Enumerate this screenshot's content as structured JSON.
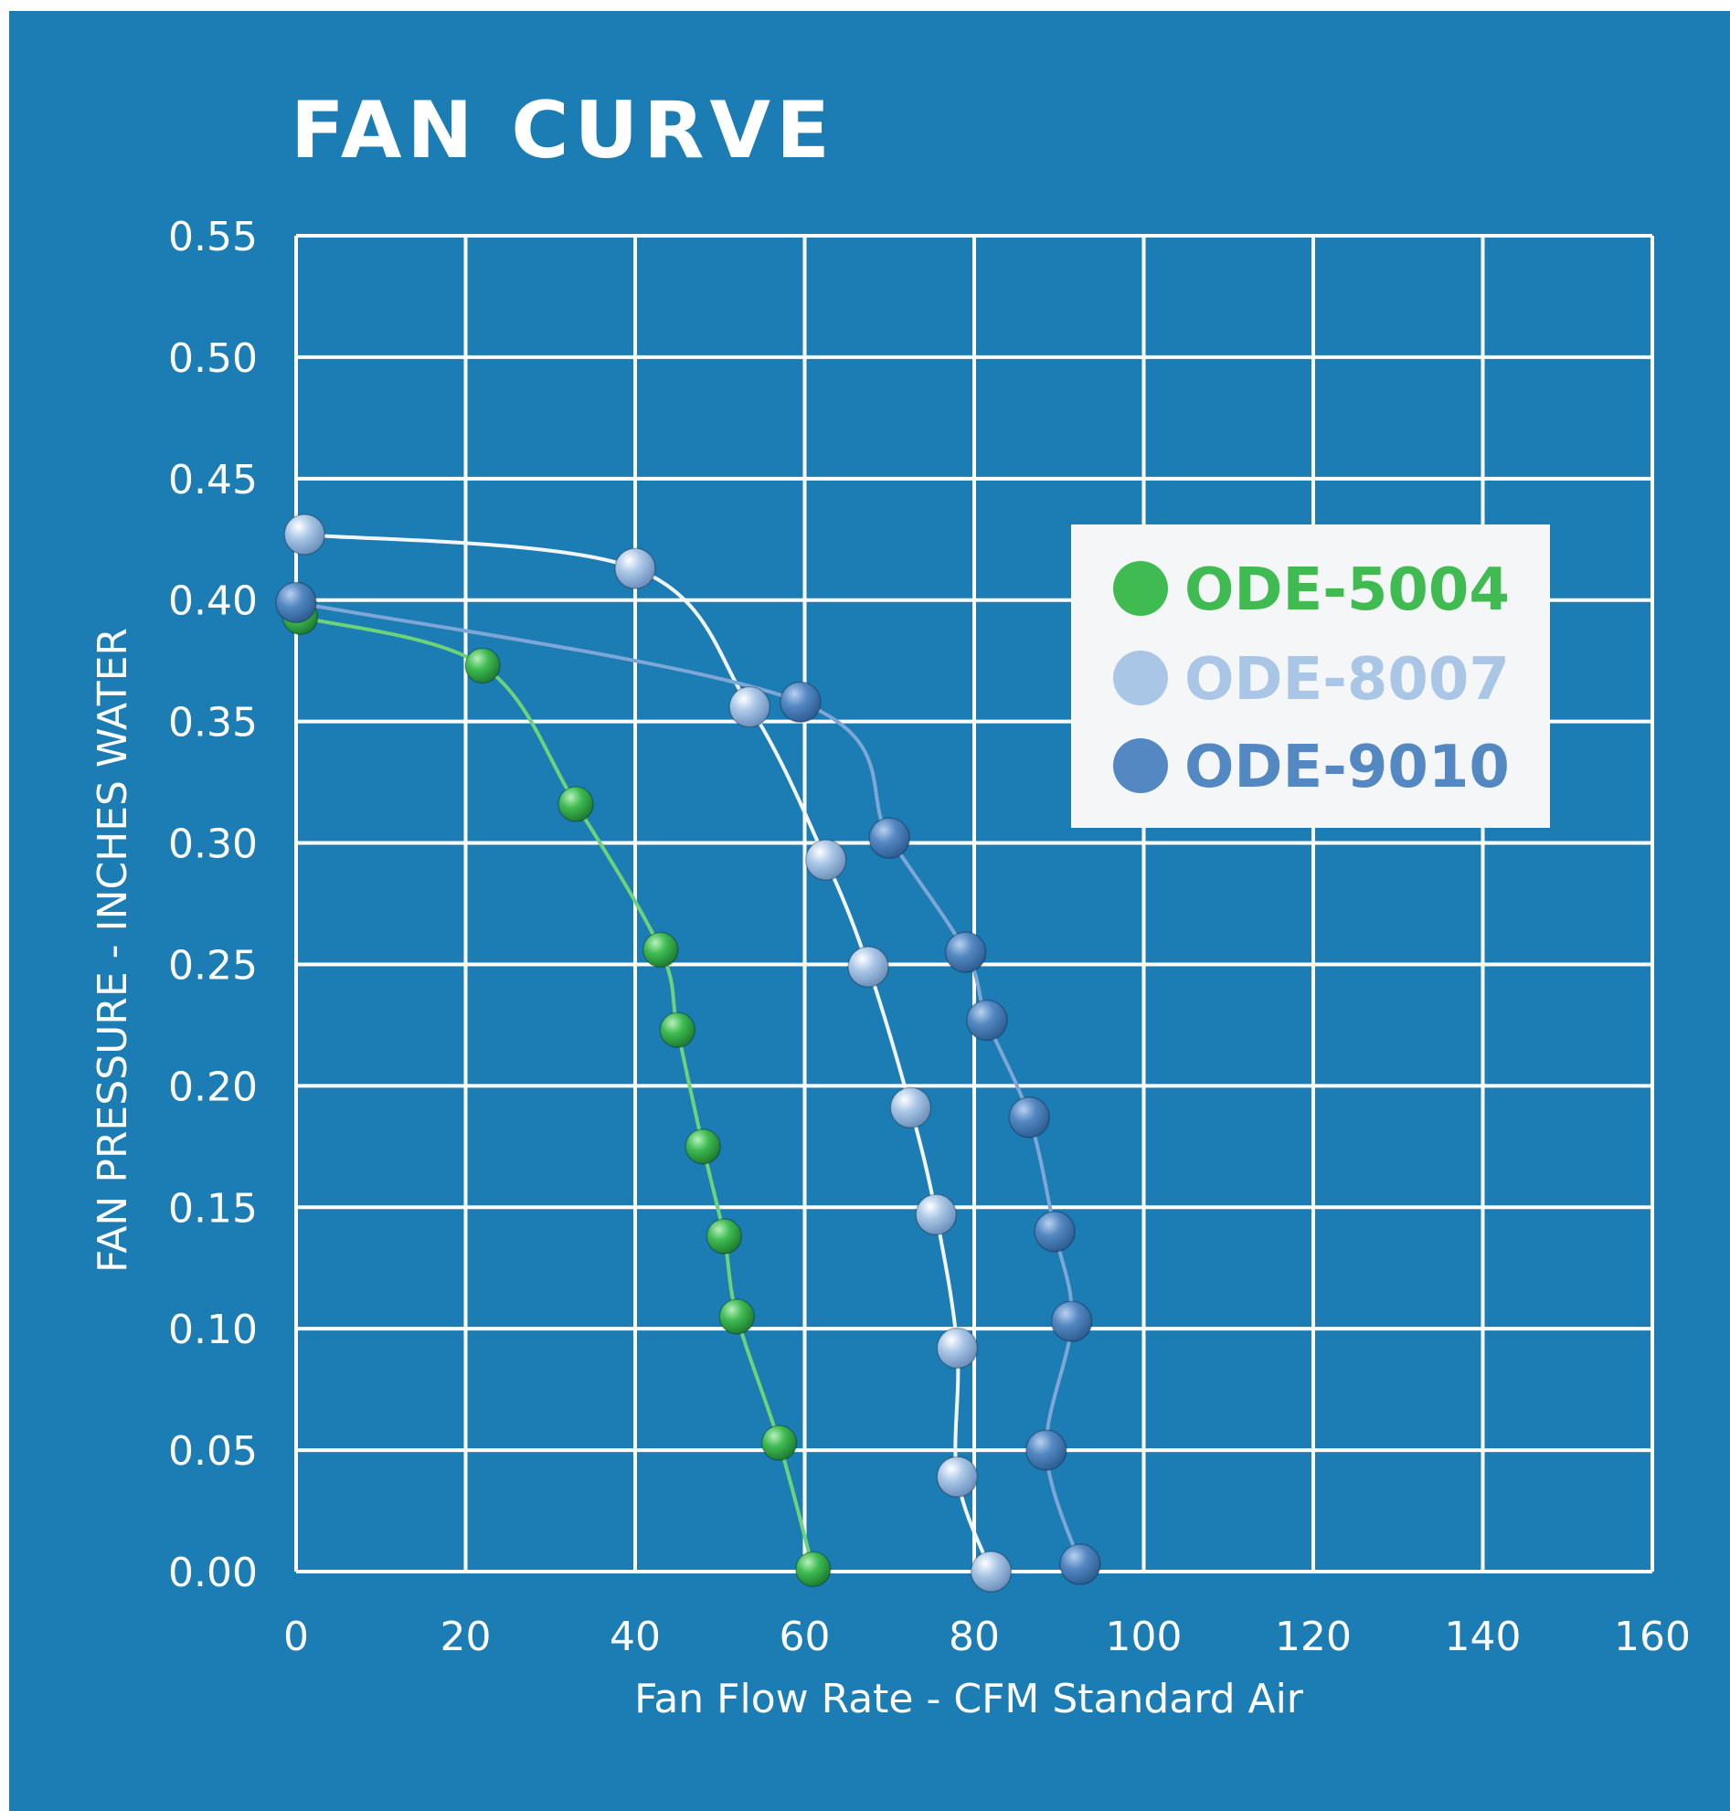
{
  "colors": {
    "background": "#1b7db3",
    "grid": "#ffffff",
    "ODE-5004": "#3fbb52",
    "ODE-8007": "#a9c6e6",
    "ODE-9010": "#5488c2"
  },
  "chart_data": {
    "type": "line",
    "title": "FAN CURVE",
    "xlabel": "Fan Flow Rate - CFM Standard Air",
    "ylabel": "FAN PRESSURE - INCHES WATER",
    "xlim": [
      0,
      160
    ],
    "ylim": [
      0,
      0.55
    ],
    "x_ticks": [
      "0",
      "20",
      "40",
      "60",
      "80",
      "100",
      "120",
      "140",
      "160"
    ],
    "y_ticks": [
      "0.55",
      "0.50",
      "0.45",
      "0.40",
      "0.35",
      "0.30",
      "0.25",
      "0.20",
      "0.15",
      "0.10",
      "0.05",
      "0.00"
    ],
    "grid": true,
    "legend_position": "top-right",
    "series": [
      {
        "name": "ODE-5004",
        "color": "#3fbb52",
        "points": [
          [
            0.5,
            0.393
          ],
          [
            22,
            0.373
          ],
          [
            33,
            0.316
          ],
          [
            43,
            0.256
          ],
          [
            45,
            0.223
          ],
          [
            48,
            0.175
          ],
          [
            50.5,
            0.138
          ],
          [
            52,
            0.105
          ],
          [
            57,
            0.053
          ],
          [
            61,
            0.001
          ]
        ]
      },
      {
        "name": "ODE-8007",
        "color": "#a9c6e6",
        "points": [
          [
            1,
            0.427
          ],
          [
            40,
            0.413
          ],
          [
            53.5,
            0.356
          ],
          [
            62.5,
            0.293
          ],
          [
            67.5,
            0.249
          ],
          [
            72.5,
            0.191
          ],
          [
            75.5,
            0.147
          ],
          [
            78,
            0.092
          ],
          [
            78,
            0.039
          ],
          [
            82,
            0.0
          ]
        ]
      },
      {
        "name": "ODE-9010",
        "color": "#5488c2",
        "points": [
          [
            0,
            0.399
          ],
          [
            59.5,
            0.358
          ],
          [
            70,
            0.302
          ],
          [
            79,
            0.255
          ],
          [
            81.5,
            0.227
          ],
          [
            86.5,
            0.187
          ],
          [
            89.5,
            0.14
          ],
          [
            91.5,
            0.103
          ],
          [
            88.5,
            0.05
          ],
          [
            92.5,
            0.003
          ]
        ]
      }
    ]
  }
}
